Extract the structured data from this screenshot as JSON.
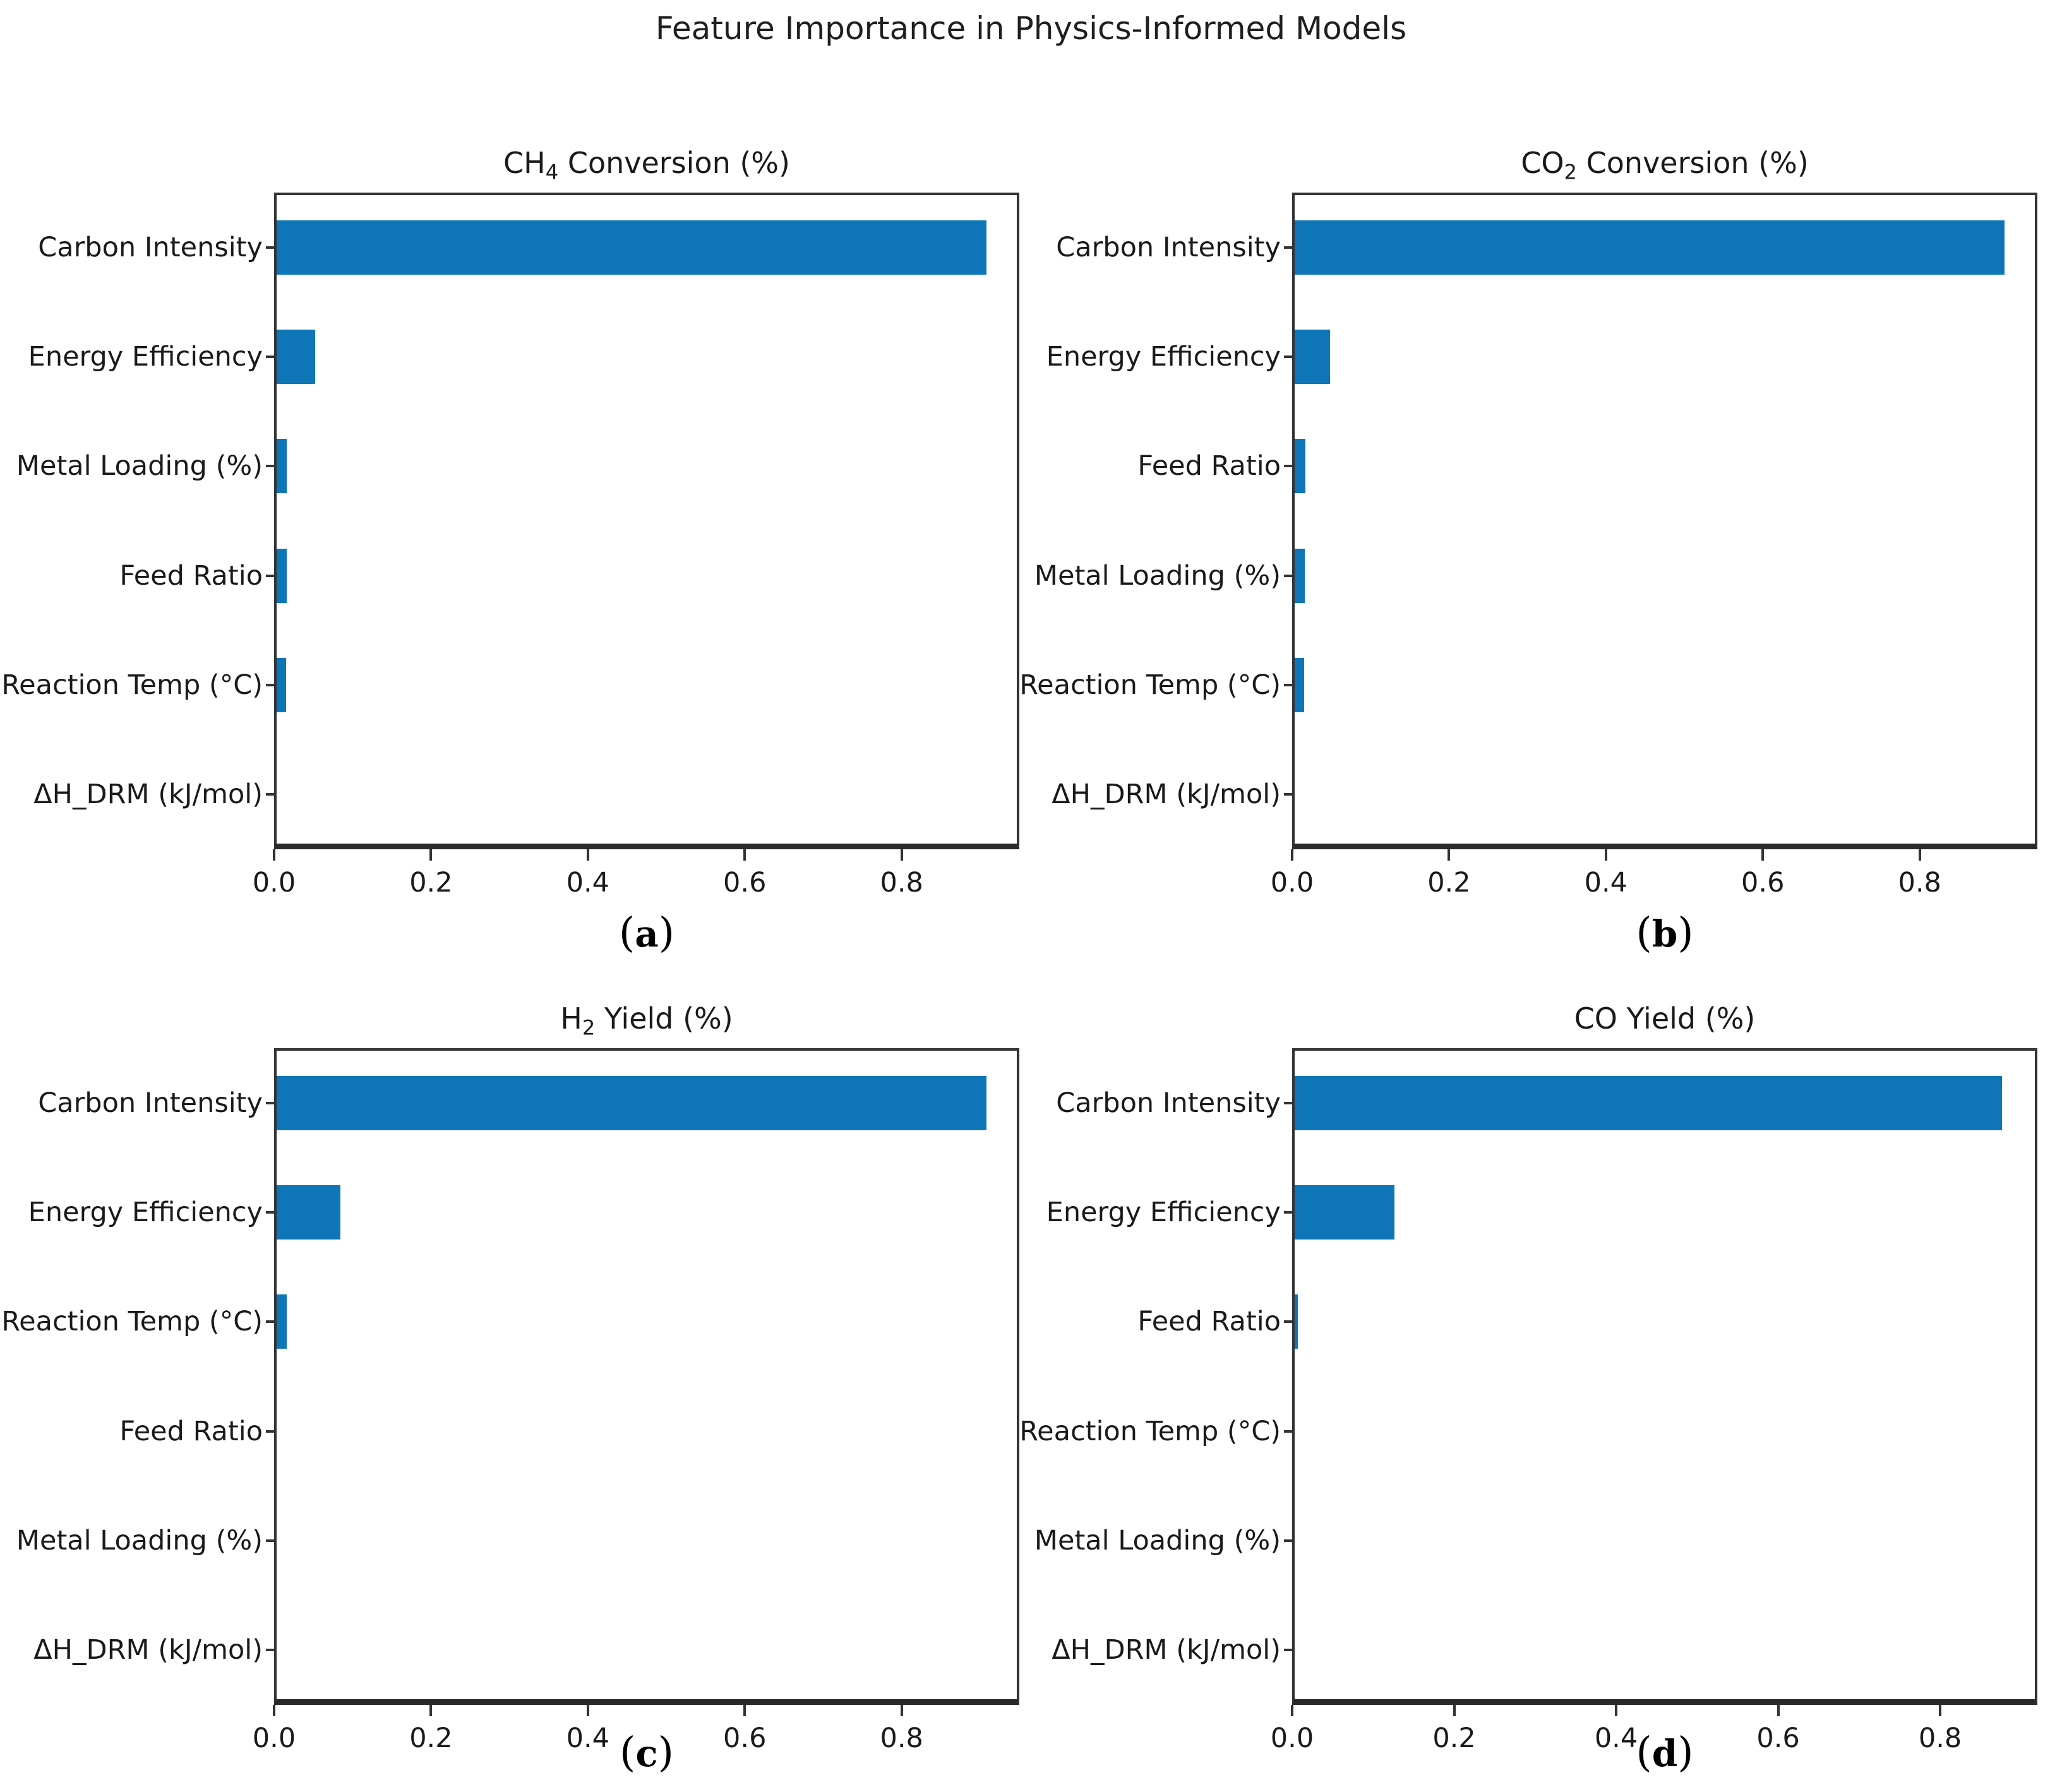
{
  "figure": {
    "title": "Feature Importance in Physics-Informed Models",
    "bar_color": "#0e76b6",
    "axis_color": "#333333",
    "axis_heavy_color": "#2a2a2a",
    "text_color": "#1a1a1a",
    "background_color": "#ffffff"
  },
  "panels": [
    {
      "id": "a",
      "letter_label": "(a)",
      "title_parts": [
        {
          "text": "CH"
        },
        {
          "text": "4",
          "subscript": true
        },
        {
          "text": " Conversion (%)"
        }
      ]
    },
    {
      "id": "b",
      "letter_label": "(b)",
      "title_parts": [
        {
          "text": "CO"
        },
        {
          "text": "2",
          "subscript": true
        },
        {
          "text": " Conversion (%)"
        }
      ]
    },
    {
      "id": "c",
      "letter_label": "(c)",
      "title_parts": [
        {
          "text": "H"
        },
        {
          "text": "2",
          "subscript": true
        },
        {
          "text": " Yield (%)"
        }
      ]
    },
    {
      "id": "d",
      "letter_label": "(d)",
      "title_parts": [
        {
          "text": "CO Yield (%)"
        }
      ]
    }
  ],
  "chart_data": [
    {
      "type": "bar",
      "orientation": "horizontal",
      "title": "CH₄ Conversion (%)",
      "categories": [
        "Carbon Intensity",
        "Energy Efficiency",
        "Metal Loading (%)",
        "Feed Ratio",
        "Reaction Temp (°C)",
        "ΔH_DRM (kJ/mol)"
      ],
      "values": [
        0.905,
        0.049,
        0.013,
        0.013,
        0.012,
        0.0
      ],
      "xlim": [
        0,
        0.95
      ],
      "xticks": [
        0.0,
        0.2,
        0.4,
        0.6,
        0.8
      ],
      "xtick_labels": [
        "0.0",
        "0.2",
        "0.4",
        "0.6",
        "0.8"
      ],
      "xlabel": "",
      "ylabel": "",
      "grid": false,
      "legend": false
    },
    {
      "type": "bar",
      "orientation": "horizontal",
      "title": "CO₂ Conversion (%)",
      "categories": [
        "Carbon Intensity",
        "Energy Efficiency",
        "Feed Ratio",
        "Metal Loading (%)",
        "Reaction Temp (°C)",
        "ΔH_DRM (kJ/mol)"
      ],
      "values": [
        0.905,
        0.045,
        0.014,
        0.013,
        0.012,
        0.0
      ],
      "xlim": [
        0,
        0.95
      ],
      "xticks": [
        0.0,
        0.2,
        0.4,
        0.6,
        0.8
      ],
      "xtick_labels": [
        "0.0",
        "0.2",
        "0.4",
        "0.6",
        "0.8"
      ],
      "xlabel": "",
      "ylabel": "",
      "grid": false,
      "legend": false
    },
    {
      "type": "bar",
      "orientation": "horizontal",
      "title": "H₂ Yield (%)",
      "categories": [
        "Carbon Intensity",
        "Energy Efficiency",
        "Reaction Temp (°C)",
        "Feed Ratio",
        "Metal Loading (%)",
        "ΔH_DRM (kJ/mol)"
      ],
      "values": [
        0.905,
        0.081,
        0.013,
        0.0,
        0.0,
        0.0
      ],
      "xlim": [
        0,
        0.95
      ],
      "xticks": [
        0.0,
        0.2,
        0.4,
        0.6,
        0.8
      ],
      "xtick_labels": [
        "0.0",
        "0.2",
        "0.4",
        "0.6",
        "0.8"
      ],
      "xlabel": "",
      "ylabel": "",
      "grid": false,
      "legend": false
    },
    {
      "type": "bar",
      "orientation": "horizontal",
      "title": "CO Yield (%)",
      "categories": [
        "Carbon Intensity",
        "Energy Efficiency",
        "Feed Ratio",
        "Reaction Temp (°C)",
        "Metal Loading (%)",
        "ΔH_DRM (kJ/mol)"
      ],
      "values": [
        0.873,
        0.123,
        0.004,
        0.0,
        0.0,
        0.0
      ],
      "xlim": [
        0,
        0.92
      ],
      "xticks": [
        0.0,
        0.2,
        0.4,
        0.6,
        0.8
      ],
      "xtick_labels": [
        "0.0",
        "0.2",
        "0.4",
        "0.6",
        "0.8"
      ],
      "xlabel": "",
      "ylabel": "",
      "grid": false,
      "legend": false
    }
  ]
}
